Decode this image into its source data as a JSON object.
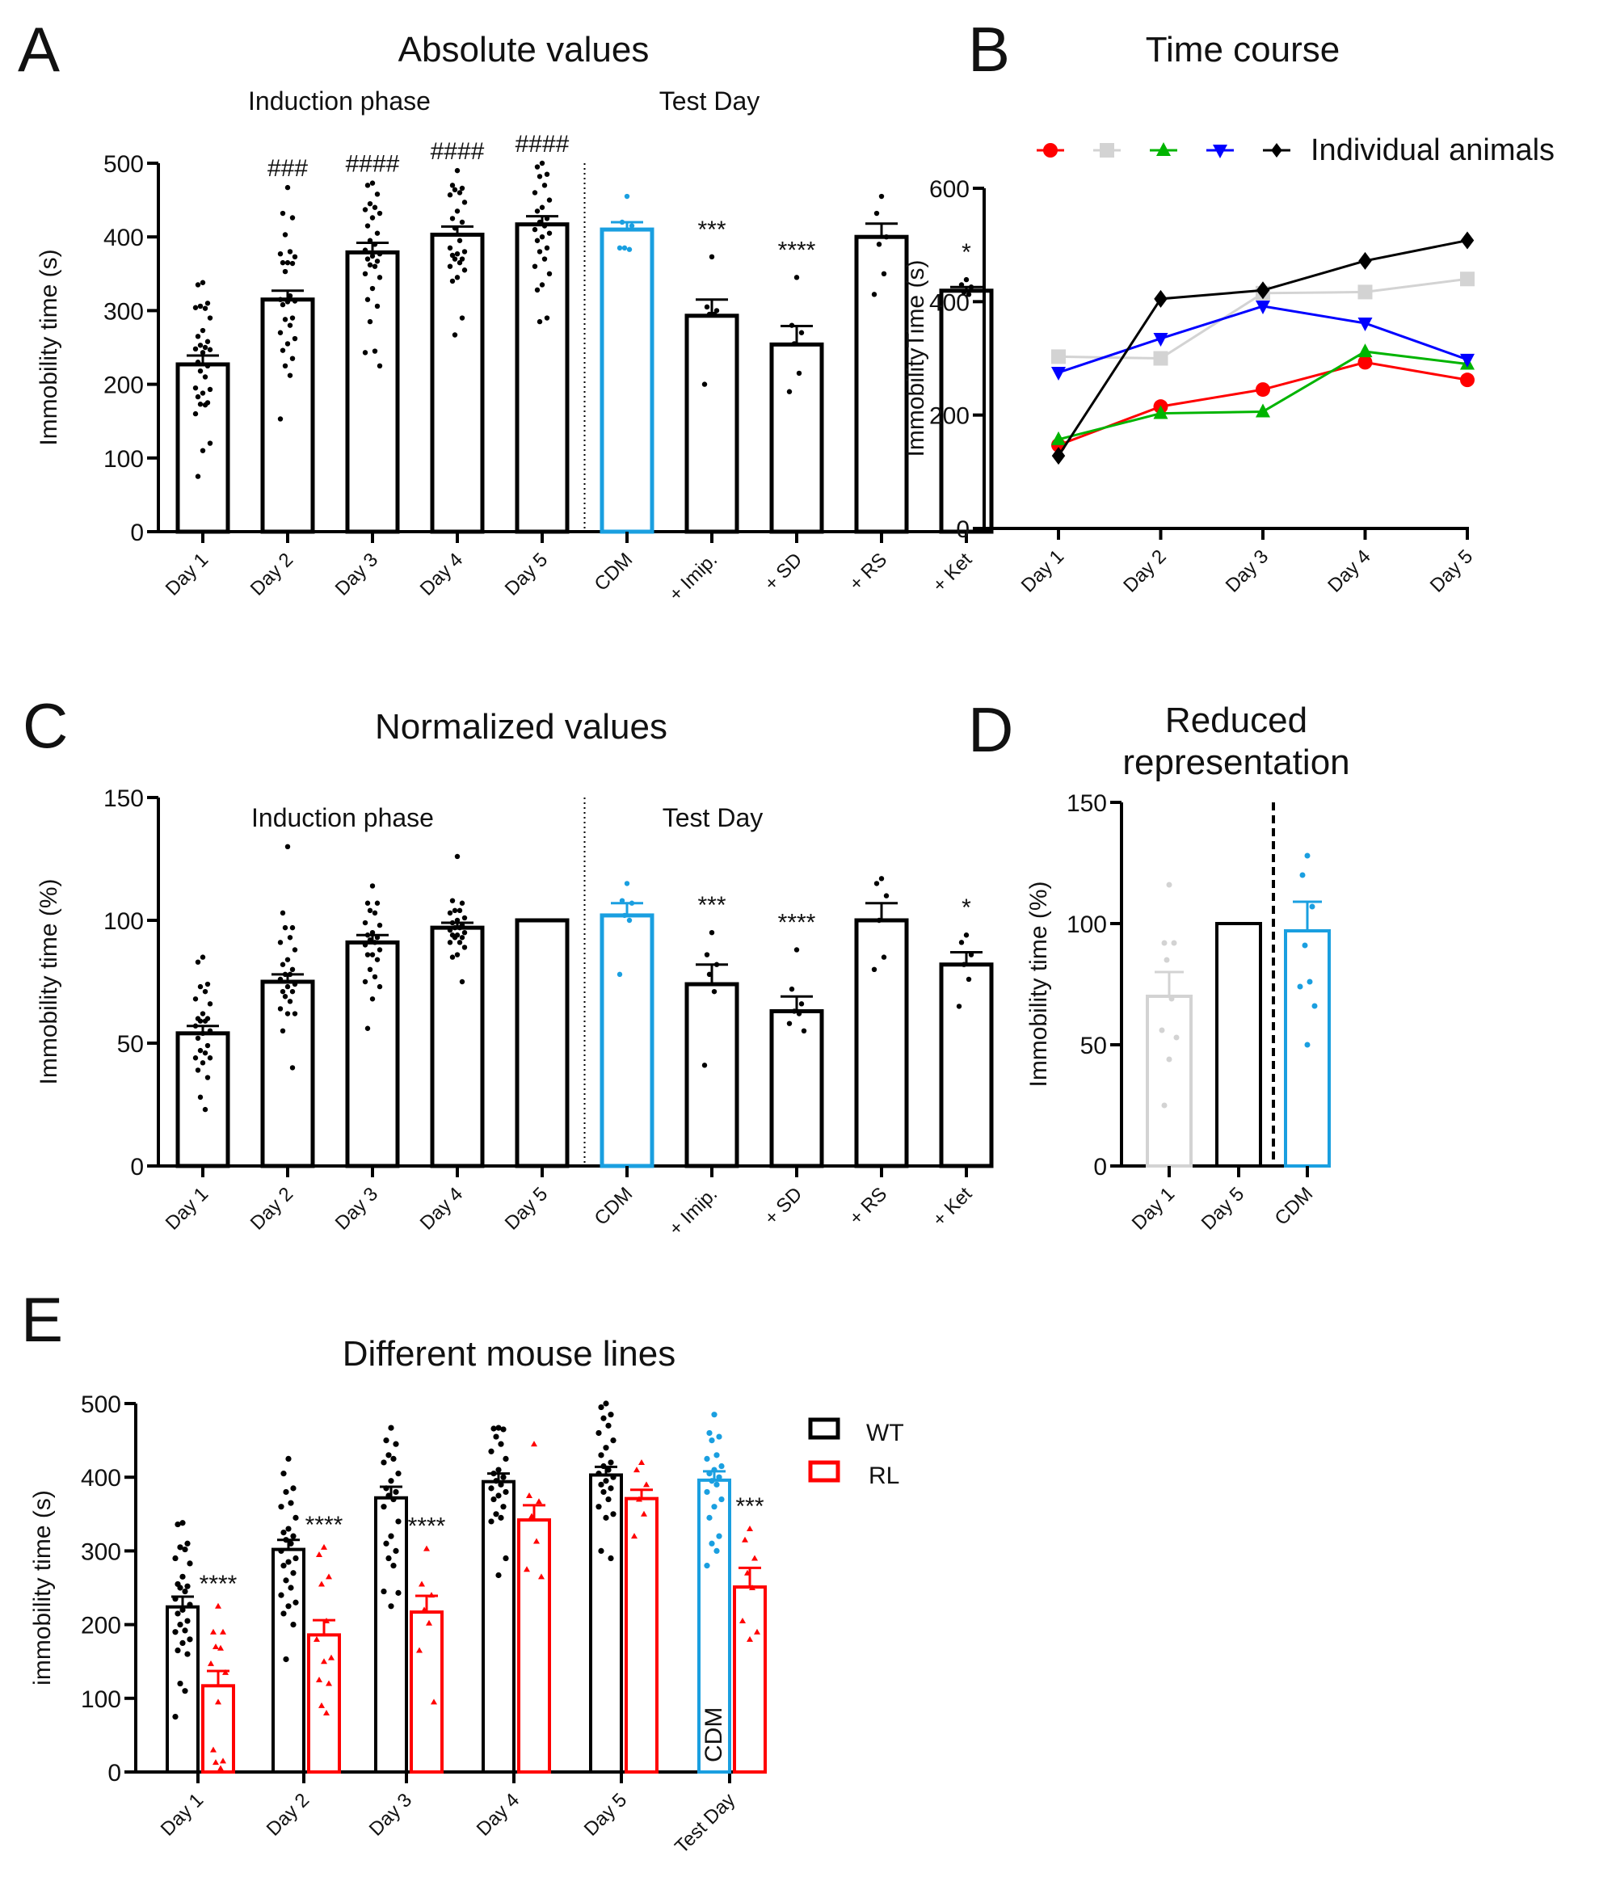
{
  "colors": {
    "black": "#000000",
    "cdm": "#1a9fe0",
    "rl": "#ff0000",
    "grey": "#d3d3d3",
    "green": "#00b400",
    "blue": "#0000ff",
    "red": "#ff0000"
  },
  "panels": {
    "A": {
      "letter": "A",
      "title": "Absolute values",
      "phase1": "Induction phase",
      "phase2": "Test Day"
    },
    "B": {
      "letter": "B",
      "title": "Time course",
      "legend_label": "Individual animals"
    },
    "C": {
      "letter": "C",
      "title": "Normalized values",
      "phase1": "Induction phase",
      "phase2": "Test Day"
    },
    "D": {
      "letter": "D",
      "title_line1": "Reduced",
      "title_line2": "representation"
    },
    "E": {
      "letter": "E",
      "title": "Different mouse lines",
      "legend": [
        {
          "label": "WT"
        },
        {
          "label": "RL"
        }
      ],
      "cdm_label": "CDM"
    }
  },
  "chart_data": [
    {
      "id": "A",
      "type": "bar",
      "title": "Absolute values",
      "ylabel": "Immobility time (s)",
      "ylim": [
        0,
        500
      ],
      "yticks": [
        0,
        100,
        200,
        300,
        400,
        500
      ],
      "categories": [
        "Day 1",
        "Day 2",
        "Day 3",
        "Day 4",
        "Day 5",
        "CDM",
        "+ Imip.",
        "+ SD",
        "+ RS",
        "+ Ket"
      ],
      "values": [
        227,
        315,
        379,
        403,
        417,
        410,
        293,
        254,
        400,
        327
      ],
      "sem": [
        12,
        12,
        13,
        11,
        11,
        10,
        22,
        25,
        18,
        5
      ],
      "significance": [
        "",
        "###",
        "####",
        "####",
        "####",
        "",
        "***",
        "****",
        "",
        "*"
      ],
      "group_labels": [
        "Induction phase",
        "Test Day"
      ],
      "highlight": {
        "CDM": "cdm"
      },
      "points": [
        [
          338,
          335,
          310,
          306,
          303,
          304,
          290,
          273,
          265,
          258,
          253,
          250,
          248,
          247,
          243,
          230,
          225,
          218,
          210,
          195,
          193,
          188,
          183,
          175,
          173,
          172,
          160,
          120,
          110,
          75
        ],
        [
          467,
          432,
          426,
          403,
          380,
          377,
          373,
          365,
          365,
          364,
          353,
          320,
          315,
          313,
          312,
          308,
          290,
          288,
          280,
          270,
          262,
          255,
          246,
          235,
          225,
          212,
          153
        ],
        [
          473,
          470,
          458,
          445,
          440,
          437,
          432,
          426,
          415,
          405,
          395,
          390,
          382,
          377,
          374,
          370,
          367,
          362,
          360,
          350,
          345,
          330,
          315,
          306,
          285,
          245,
          243,
          225
        ],
        [
          490,
          470,
          466,
          464,
          460,
          457,
          447,
          435,
          425,
          420,
          412,
          395,
          385,
          380,
          377,
          375,
          370,
          370,
          365,
          360,
          355,
          345,
          340,
          290,
          267
        ],
        [
          500,
          495,
          485,
          482,
          470,
          460,
          450,
          440,
          435,
          425,
          420,
          415,
          410,
          405,
          400,
          395,
          385,
          380,
          370,
          360,
          350,
          335,
          328,
          290,
          285
        ],
        [
          455,
          420,
          415,
          385,
          383,
          385
        ],
        [
          373,
          305,
          300,
          295,
          295,
          200
        ],
        [
          345,
          280,
          270,
          255,
          215,
          190
        ],
        [
          455,
          432,
          400,
          390,
          350,
          322
        ],
        [
          342,
          335,
          332,
          325,
          322
        ]
      ]
    },
    {
      "id": "B",
      "type": "line",
      "title": "Time course",
      "ylabel": "ImmobilityTime (s)",
      "ylim": [
        0,
        600
      ],
      "yticks": [
        0,
        200,
        400,
        600
      ],
      "x": [
        "Day 1",
        "Day 2",
        "Day 3",
        "Day 4",
        "Day 5"
      ],
      "legend": "Individual animals",
      "legend_position": "top",
      "series": [
        {
          "name": "animal-red",
          "marker": "circle",
          "color": "red",
          "values": [
            147,
            215,
            245,
            293,
            262
          ]
        },
        {
          "name": "animal-grey",
          "marker": "square",
          "color": "grey",
          "values": [
            303,
            300,
            415,
            417,
            440
          ]
        },
        {
          "name": "animal-green",
          "marker": "triangle-up",
          "color": "green",
          "values": [
            157,
            203,
            206,
            312,
            290
          ]
        },
        {
          "name": "animal-blue",
          "marker": "triangle-down",
          "color": "blue",
          "values": [
            275,
            335,
            392,
            362,
            298
          ]
        },
        {
          "name": "animal-black",
          "marker": "diamond",
          "color": "black",
          "values": [
            128,
            405,
            420,
            472,
            508
          ]
        }
      ]
    },
    {
      "id": "C",
      "type": "bar",
      "title": "Normalized values",
      "ylabel": "Immobility time (%)",
      "ylim": [
        0,
        150
      ],
      "yticks": [
        0,
        50,
        100,
        150
      ],
      "categories": [
        "Day 1",
        "Day 2",
        "Day 3",
        "Day 4",
        "Day 5",
        "CDM",
        "+ Imip.",
        "+ SD",
        "+ RS",
        "+ Ket"
      ],
      "values": [
        54,
        75,
        91,
        97,
        100,
        102,
        74,
        63,
        100,
        82
      ],
      "sem": [
        3,
        3,
        3,
        2,
        0,
        5,
        8,
        6,
        7,
        5
      ],
      "significance": [
        "",
        "",
        "",
        "",
        "",
        "",
        "***",
        "****",
        "",
        "*"
      ],
      "group_labels": [
        "Induction phase",
        "Test Day"
      ],
      "points": [
        [
          85,
          83,
          74,
          73,
          71,
          68,
          66,
          62,
          60,
          60,
          59,
          59,
          57,
          55,
          54,
          52,
          49,
          47,
          46,
          44,
          44,
          42,
          39,
          36,
          28,
          23
        ],
        [
          130,
          103,
          97,
          97,
          93,
          91,
          88,
          84,
          82,
          80,
          78,
          78,
          76,
          74,
          73,
          71,
          71,
          69,
          67,
          64,
          62,
          62,
          55,
          40
        ],
        [
          114,
          107,
          107,
          104,
          103,
          99,
          98,
          95,
          94,
          93,
          92,
          91,
          90,
          88,
          86,
          86,
          84,
          80,
          77,
          75,
          73,
          68,
          56
        ],
        [
          126,
          108,
          107,
          104,
          104,
          103,
          101,
          100,
          99,
          98,
          97,
          97,
          96,
          95,
          94,
          94,
          93,
          93,
          91,
          91,
          89,
          86,
          85,
          75
        ],
        [],
        [
          115,
          108,
          107,
          102,
          100,
          78
        ],
        [
          95,
          86,
          82,
          78,
          71,
          41
        ],
        [
          88,
          72,
          66,
          63,
          62,
          58,
          55
        ],
        [
          117,
          115,
          110,
          100,
          85,
          80
        ],
        [
          94,
          91,
          86,
          82,
          76,
          65
        ]
      ]
    },
    {
      "id": "D",
      "type": "bar",
      "title": "Reduced representation",
      "ylabel": "Immobility time (%)",
      "ylim": [
        0,
        150
      ],
      "yticks": [
        0,
        50,
        100,
        150
      ],
      "categories": [
        "Day 1",
        "Day 5",
        "CDM"
      ],
      "values": [
        70,
        100,
        97
      ],
      "sem": [
        10,
        0,
        12
      ],
      "colors": [
        "grey",
        "black",
        "cdm"
      ],
      "points": [
        [
          116,
          92,
          92,
          85,
          69,
          56,
          53,
          44,
          25
        ],
        [],
        [
          128,
          120,
          107,
          91,
          76,
          74,
          66,
          50
        ]
      ]
    },
    {
      "id": "E",
      "type": "bar",
      "title": "Different mouse lines",
      "ylabel": "immobility time (s)",
      "ylim": [
        0,
        500
      ],
      "yticks": [
        0,
        100,
        200,
        300,
        400,
        500
      ],
      "categories": [
        "Day 1",
        "Day 2",
        "Day 3",
        "Day 4",
        "Day 5",
        "Test Day"
      ],
      "legend_position": "right",
      "series": [
        {
          "name": "WT",
          "values": [
            224,
            302,
            372,
            394,
            403,
            396
          ],
          "sem": [
            14,
            13,
            15,
            11,
            11,
            12
          ],
          "points": [
            [
              338,
              336,
              310,
              305,
              302,
              290,
              283,
              265,
              255,
              252,
              250,
              245,
              235,
              227,
              220,
              215,
              205,
              200,
              192,
              190,
              180,
              175,
              165,
              160,
              120,
              110,
              75
            ],
            [
              425,
              405,
              385,
              380,
              365,
              360,
              345,
              330,
              325,
              320,
              315,
              310,
              300,
              290,
              285,
              280,
              270,
              260,
              250,
              240,
              230,
              225,
              215,
              200,
              153
            ],
            [
              467,
              450,
              445,
              430,
              425,
              420,
              405,
              395,
              385,
              380,
              375,
              370,
              360,
              340,
              320,
              310,
              300,
              290,
              280,
              245,
              243,
              225
            ],
            [
              467,
              466,
              465,
              455,
              445,
              435,
              425,
              410,
              405,
              400,
              395,
              390,
              385,
              380,
              375,
              370,
              360,
              350,
              345,
              340,
              290,
              267
            ],
            [
              500,
              495,
              485,
              480,
              470,
              460,
              450,
              440,
              430,
              420,
              415,
              410,
              405,
              400,
              395,
              390,
              385,
              380,
              370,
              360,
              350,
              345,
              300,
              290
            ],
            [
              485,
              460,
              455,
              450,
              430,
              425,
              415,
              410,
              405,
              400,
              395,
              390,
              380,
              370,
              360,
              345,
              320,
              310,
              300,
              280
            ]
          ]
        },
        {
          "name": "RL",
          "values": [
            117,
            186,
            217,
            342,
            371,
            251
          ],
          "sem": [
            20,
            20,
            22,
            20,
            12,
            26
          ],
          "points": [
            [
              225,
              190,
              190,
              170,
              168,
              147,
              135,
              95,
              30,
              15,
              13,
              5
            ],
            [
              305,
              295,
              265,
              255,
              205,
              180,
              155,
              150,
              125,
              120,
              90,
              80
            ],
            [
              303,
              255,
              240,
              220,
              202,
              165,
              95
            ],
            [
              445,
              375,
              367,
              347,
              313,
              275,
              265
            ],
            [
              420,
              410,
              390,
              370,
              350,
              320
            ],
            [
              330,
              315,
              290,
              270,
              250,
              205,
              190,
              180
            ]
          ]
        }
      ],
      "significance": [
        "****",
        "****",
        "****",
        "",
        "",
        "***"
      ],
      "cdm_bar_label": "CDM"
    }
  ]
}
